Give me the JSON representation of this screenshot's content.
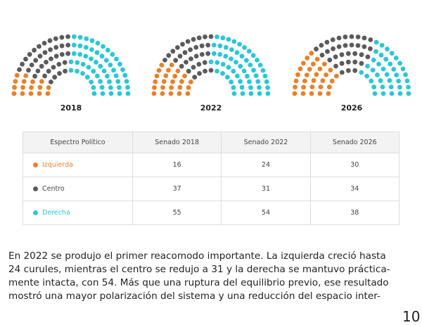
{
  "charts": [
    {
      "label": "2018"
    },
    {
      "label": "2022"
    },
    {
      "label": "2026"
    }
  ],
  "table": {
    "header": [
      "Espectro Político",
      "Senado 2018",
      "Senado 2022",
      "Senado 2026"
    ],
    "rows": [
      {
        "party": "Izquierda",
        "color": "#e8812b",
        "values": [
          16,
          24,
          30
        ]
      },
      {
        "party": "Centro",
        "color": "#5b5b5b",
        "values": [
          37,
          31,
          34
        ]
      },
      {
        "party": "Derecha",
        "color": "#2cc6d6",
        "values": [
          55,
          54,
          38
        ]
      }
    ]
  },
  "paragraph": [
    "En 2022 se produjo el primer reacomodo importante. La izquierda creció hasta",
    "24 curules, mientras el centro se redujo a 31 y la derecha se mantuvo práctica-",
    "mente intacta, con 54. Más que una ruptura del equilibrio previo, ese resultado",
    "mostró una mayor polarización del sistema y una reducción del espacio inter-"
  ],
  "page_number": "10"
}
